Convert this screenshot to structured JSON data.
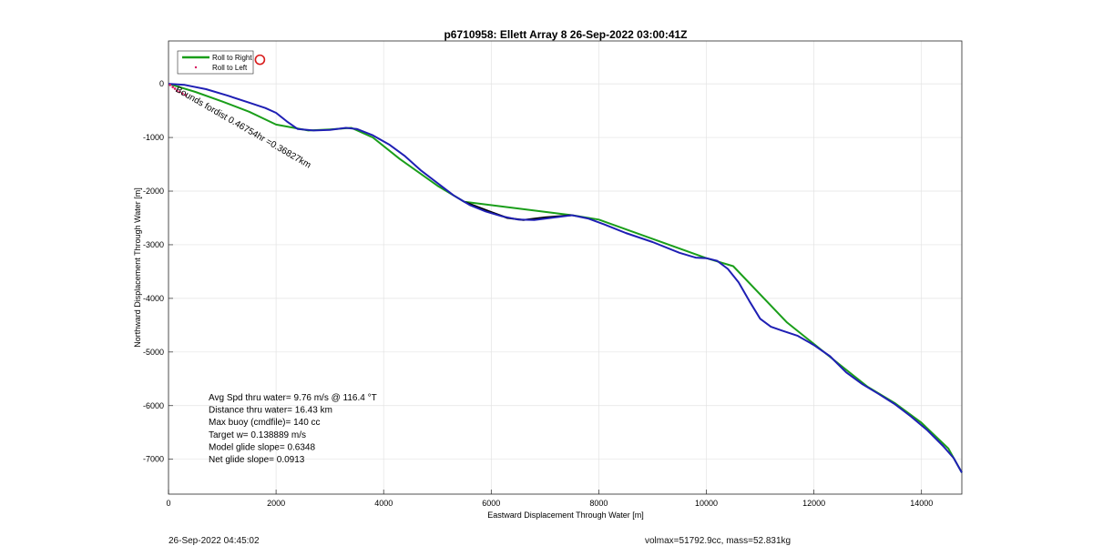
{
  "chart_data": {
    "type": "line",
    "title": "p6710958: Ellett Array 8 26-Sep-2022 03:00:41Z",
    "xlabel": "Eastward Displacement Through Water [m]",
    "ylabel": "Northward Displacement Through Water [m]",
    "xlim": [
      0,
      14750
    ],
    "ylim": [
      -7650,
      800
    ],
    "xticks": [
      0,
      2000,
      4000,
      6000,
      8000,
      10000,
      12000,
      14000
    ],
    "yticks": [
      0,
      -1000,
      -2000,
      -3000,
      -4000,
      -5000,
      -6000,
      -7000
    ],
    "grid": true,
    "legend_position": "top-left",
    "legend": [
      {
        "label": "Roll to Right",
        "color": "#1a9e1a",
        "style": "line"
      },
      {
        "label": "Roll to Left",
        "color": "#d81b60",
        "style": "dot"
      }
    ],
    "series": [
      {
        "name": "Roll to Right",
        "color": "#1a9e1a",
        "x": [
          0,
          500,
          1000,
          1500,
          2000,
          2600,
          3000,
          3400,
          3800,
          4300,
          5000,
          5500,
          7500,
          8000,
          10000,
          10500,
          11500,
          12500,
          13000,
          13500,
          14000,
          14500,
          14750
        ],
        "y": [
          0,
          -150,
          -330,
          -520,
          -760,
          -870,
          -850,
          -820,
          -1000,
          -1400,
          -1900,
          -2200,
          -2450,
          -2530,
          -3250,
          -3400,
          -4450,
          -5250,
          -5650,
          -5950,
          -6320,
          -6800,
          -7250
        ]
      },
      {
        "name": "",
        "color": "#000000",
        "x": [
          5500,
          6000,
          6300,
          6600,
          7000,
          7500
        ],
        "y": [
          -2200,
          -2390,
          -2500,
          -2540,
          -2490,
          -2450
        ]
      },
      {
        "name": "",
        "color": "#1f1fb4",
        "x": [
          0,
          300,
          700,
          1100,
          1500,
          1800,
          2000,
          2200,
          2400,
          2700,
          3000,
          3300,
          3500,
          3800,
          4100,
          4400,
          4700,
          5000,
          5300,
          5600,
          5900,
          6200,
          6500,
          6800,
          7100,
          7500,
          7800,
          8100,
          8500,
          9000,
          9500,
          9800,
          10000,
          10200,
          10400,
          10600,
          10800,
          11000,
          11200,
          11400,
          11700,
          12000,
          12300,
          12600,
          12900,
          13200,
          13500,
          13800,
          14100,
          14400,
          14600,
          14750
        ],
        "y": [
          0,
          -20,
          -100,
          -220,
          -350,
          -450,
          -540,
          -700,
          -840,
          -870,
          -860,
          -820,
          -840,
          -960,
          -1130,
          -1350,
          -1620,
          -1850,
          -2080,
          -2260,
          -2380,
          -2470,
          -2530,
          -2540,
          -2500,
          -2450,
          -2510,
          -2620,
          -2780,
          -2950,
          -3150,
          -3240,
          -3250,
          -3300,
          -3450,
          -3700,
          -4050,
          -4380,
          -4530,
          -4600,
          -4700,
          -4870,
          -5080,
          -5380,
          -5600,
          -5780,
          -5970,
          -6200,
          -6450,
          -6750,
          -6980,
          -7250
        ]
      }
    ],
    "roll_to_left_markers": {
      "x": [
        30,
        80,
        120,
        160,
        210,
        260,
        320
      ],
      "y": [
        -20,
        -60,
        -90,
        -130,
        -150,
        -180,
        -210
      ]
    },
    "start_annotation": "Bounds fordist 0.46754hr =0.36827km",
    "start_circle_marker": {
      "x": 1700,
      "y": 450
    },
    "stats_text": [
      "Avg Spd thru water=  9.76 m/s @ 116.4 °T",
      "Distance thru water= 16.43 km",
      "Max buoy (cmdfile)= 140 cc",
      "Target w= 0.138889 m/s",
      "Model glide slope= 0.6348",
      "Net glide slope= 0.0913"
    ]
  },
  "footer": {
    "left": "26-Sep-2022 04:45:02",
    "right": "volmax=51792.9cc, mass=52.831kg"
  }
}
